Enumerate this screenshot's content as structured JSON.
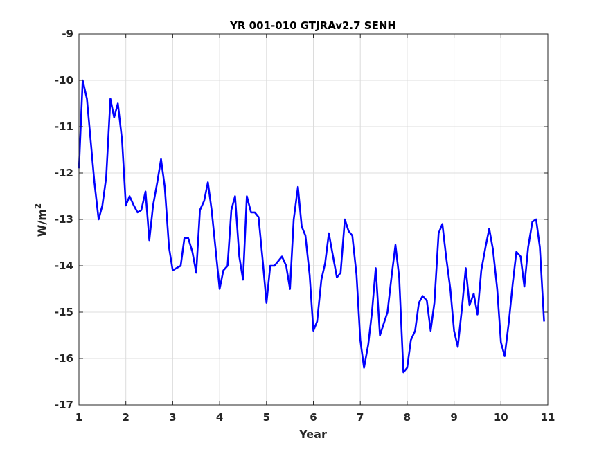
{
  "chart_data": {
    "type": "line",
    "title": "YR 001-010 GTJRAv2.7 SENH",
    "xlabel": "Year",
    "ylabel": "W/m",
    "ylabel_superscript": "2",
    "xlim": [
      1,
      11
    ],
    "ylim": [
      -17,
      -9
    ],
    "xticks": [
      "1",
      "2",
      "3",
      "4",
      "5",
      "6",
      "7",
      "8",
      "9",
      "10",
      "11"
    ],
    "yticks": [
      "-9",
      "-10",
      "-11",
      "-12",
      "-13",
      "-14",
      "-15",
      "-16",
      "-17"
    ],
    "grid": true,
    "series": [
      {
        "color": "#0000ff",
        "x": [
          1.0,
          1.08,
          1.17,
          1.25,
          1.33,
          1.42,
          1.5,
          1.58,
          1.67,
          1.75,
          1.83,
          1.92,
          2.0,
          2.08,
          2.17,
          2.25,
          2.33,
          2.42,
          2.5,
          2.58,
          2.67,
          2.75,
          2.83,
          2.92,
          3.0,
          3.08,
          3.17,
          3.25,
          3.33,
          3.42,
          3.5,
          3.58,
          3.67,
          3.75,
          3.83,
          3.92,
          4.0,
          4.08,
          4.17,
          4.25,
          4.33,
          4.42,
          4.5,
          4.58,
          4.67,
          4.75,
          4.83,
          4.92,
          5.0,
          5.08,
          5.17,
          5.25,
          5.33,
          5.42,
          5.5,
          5.58,
          5.67,
          5.75,
          5.83,
          5.92,
          6.0,
          6.08,
          6.17,
          6.25,
          6.33,
          6.42,
          6.5,
          6.58,
          6.67,
          6.75,
          6.83,
          6.92,
          7.0,
          7.08,
          7.17,
          7.25,
          7.33,
          7.42,
          7.5,
          7.58,
          7.67,
          7.75,
          7.83,
          7.92,
          8.0,
          8.08,
          8.17,
          8.25,
          8.33,
          8.42,
          8.5,
          8.58,
          8.67,
          8.75,
          8.83,
          8.92,
          9.0,
          9.08,
          9.17,
          9.25,
          9.33,
          9.42,
          9.5,
          9.58,
          9.67,
          9.75,
          9.83,
          9.92,
          10.0,
          10.08,
          10.17,
          10.25,
          10.33,
          10.42,
          10.5,
          10.58,
          10.67,
          10.75,
          10.83,
          10.92
        ],
        "y": [
          -11.9,
          -10.0,
          -10.4,
          -11.3,
          -12.2,
          -13.0,
          -12.7,
          -12.1,
          -10.4,
          -10.8,
          -10.5,
          -11.3,
          -12.7,
          -12.5,
          -12.7,
          -12.85,
          -12.8,
          -12.4,
          -13.45,
          -12.7,
          -12.2,
          -11.7,
          -12.3,
          -13.6,
          -14.1,
          -14.05,
          -14.0,
          -13.4,
          -13.4,
          -13.7,
          -14.15,
          -12.8,
          -12.6,
          -12.2,
          -12.8,
          -13.7,
          -14.5,
          -14.1,
          -14.0,
          -12.8,
          -12.5,
          -13.8,
          -14.3,
          -12.5,
          -12.85,
          -12.85,
          -12.95,
          -13.9,
          -14.8,
          -14.0,
          -14.0,
          -13.9,
          -13.8,
          -14.0,
          -14.5,
          -13.0,
          -12.3,
          -13.15,
          -13.35,
          -14.2,
          -15.4,
          -15.2,
          -14.3,
          -13.95,
          -13.3,
          -13.8,
          -14.25,
          -14.15,
          -13.0,
          -13.25,
          -13.35,
          -14.2,
          -15.6,
          -16.2,
          -15.7,
          -15.0,
          -14.05,
          -15.5,
          -15.25,
          -15.0,
          -14.2,
          -13.55,
          -14.25,
          -16.3,
          -16.2,
          -15.6,
          -15.4,
          -14.8,
          -14.65,
          -14.75,
          -15.4,
          -14.8,
          -13.3,
          -13.1,
          -13.8,
          -14.5,
          -15.4,
          -15.75,
          -14.9,
          -14.05,
          -14.85,
          -14.6,
          -15.05,
          -14.1,
          -13.6,
          -13.2,
          -13.65,
          -14.5,
          -15.65,
          -15.95,
          -15.2,
          -14.4,
          -13.7,
          -13.8,
          -14.45,
          -13.6,
          -13.05,
          -13.0,
          -13.6,
          -15.2
        ]
      }
    ]
  }
}
